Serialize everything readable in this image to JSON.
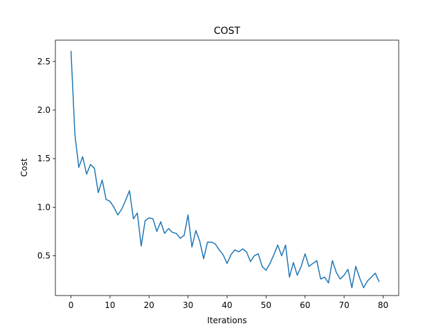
{
  "chart_data": {
    "type": "line",
    "title": "COST",
    "xlabel": "Iterations",
    "ylabel": "Cost",
    "xlim": [
      -4,
      84
    ],
    "ylim": [
      0.09,
      2.72
    ],
    "xticks": [
      0,
      10,
      20,
      30,
      40,
      50,
      60,
      70,
      80
    ],
    "xtick_labels": [
      "0",
      "10",
      "20",
      "30",
      "40",
      "50",
      "60",
      "70",
      "80"
    ],
    "yticks": [
      0.5,
      1.0,
      1.5,
      2.0,
      2.5
    ],
    "ytick_labels": [
      "0.5",
      "1.0",
      "1.5",
      "2.0",
      "2.5"
    ],
    "grid": false,
    "legend": false,
    "colors": {
      "line": "#1f77b4",
      "axes": "#000000",
      "background": "#ffffff"
    },
    "series": [
      {
        "x": [
          0,
          1,
          2,
          3,
          4,
          5,
          6,
          7,
          8,
          9,
          10,
          11,
          12,
          13,
          14,
          15,
          16,
          17,
          18,
          19,
          20,
          21,
          22,
          23,
          24,
          25,
          26,
          27,
          28,
          29,
          30,
          31,
          32,
          33,
          34,
          35,
          36,
          37,
          38,
          39,
          40,
          41,
          42,
          43,
          44,
          45,
          46,
          47,
          48,
          49,
          50,
          51,
          52,
          53,
          54,
          55,
          56,
          57,
          58,
          59,
          60,
          61,
          62,
          63,
          64,
          65,
          66,
          67,
          68,
          69,
          70,
          71,
          72,
          73,
          74,
          75,
          76,
          77,
          78,
          79
        ],
        "values": [
          2.61,
          1.75,
          1.41,
          1.52,
          1.34,
          1.44,
          1.4,
          1.15,
          1.28,
          1.08,
          1.06,
          1.0,
          0.92,
          0.98,
          1.07,
          1.17,
          0.88,
          0.94,
          0.6,
          0.86,
          0.89,
          0.88,
          0.75,
          0.85,
          0.73,
          0.78,
          0.74,
          0.73,
          0.68,
          0.71,
          0.92,
          0.59,
          0.76,
          0.65,
          0.47,
          0.64,
          0.64,
          0.62,
          0.56,
          0.51,
          0.42,
          0.51,
          0.56,
          0.54,
          0.57,
          0.54,
          0.44,
          0.5,
          0.52,
          0.39,
          0.35,
          0.42,
          0.51,
          0.61,
          0.5,
          0.61,
          0.28,
          0.43,
          0.3,
          0.39,
          0.52,
          0.39,
          0.42,
          0.45,
          0.26,
          0.28,
          0.22,
          0.45,
          0.33,
          0.26,
          0.3,
          0.36,
          0.17,
          0.39,
          0.27,
          0.17,
          0.24,
          0.28,
          0.32,
          0.23
        ]
      }
    ]
  }
}
